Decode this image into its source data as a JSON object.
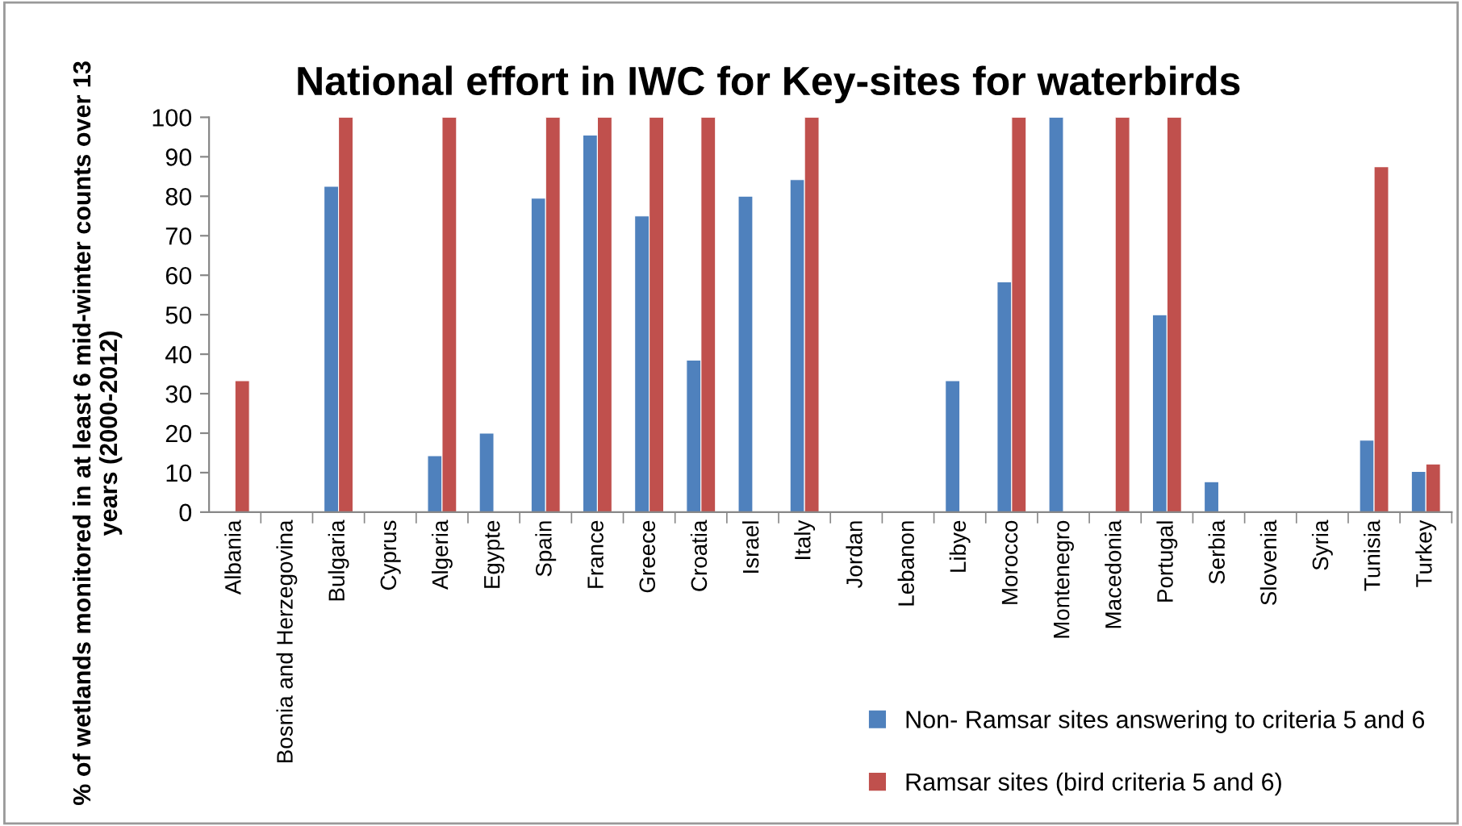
{
  "chart_data": {
    "type": "bar",
    "title": "National effort in IWC for Key-sites for waterbirds",
    "ylabel": "% of wetlands monitored in at least 6 mid-winter counts over 13 years (2000-2012)",
    "categories": [
      "Albania",
      "Bosnia and Herzegovina",
      "Bulgaria",
      "Cyprus",
      "Algeria",
      "Egypte",
      "Spain",
      "France",
      "Greece",
      "Croatia",
      "Israel",
      "Italy",
      "Jordan",
      "Lebanon",
      "Libye",
      "Morocco",
      "Montenegro",
      "Macedonia",
      "Portugal",
      "Serbia",
      "Slovenia",
      "Syria",
      "Tunisia",
      "Turkey"
    ],
    "series": [
      {
        "name": "Non- Ramsar sites answering to criteria 5 and 6",
        "color": "#4f81bd",
        "values": [
          null,
          null,
          82.5,
          null,
          14.3,
          20,
          79.5,
          95.5,
          75,
          38.5,
          80,
          84.2,
          null,
          null,
          33.3,
          58.3,
          100,
          null,
          50,
          7.7,
          null,
          null,
          18.2,
          10.3
        ]
      },
      {
        "name": "Ramsar sites (bird criteria 5 and 6)",
        "color": "#c0504d",
        "values": [
          33.3,
          null,
          100,
          null,
          100,
          null,
          100,
          100,
          100,
          100,
          null,
          100,
          null,
          null,
          null,
          100,
          null,
          100,
          100,
          null,
          null,
          null,
          87.5,
          12.2
        ]
      }
    ],
    "ylim": [
      0,
      100
    ],
    "yticks": [
      0,
      10,
      20,
      30,
      40,
      50,
      60,
      70,
      80,
      90,
      100
    ],
    "grid": false,
    "legend": "bottom right"
  }
}
